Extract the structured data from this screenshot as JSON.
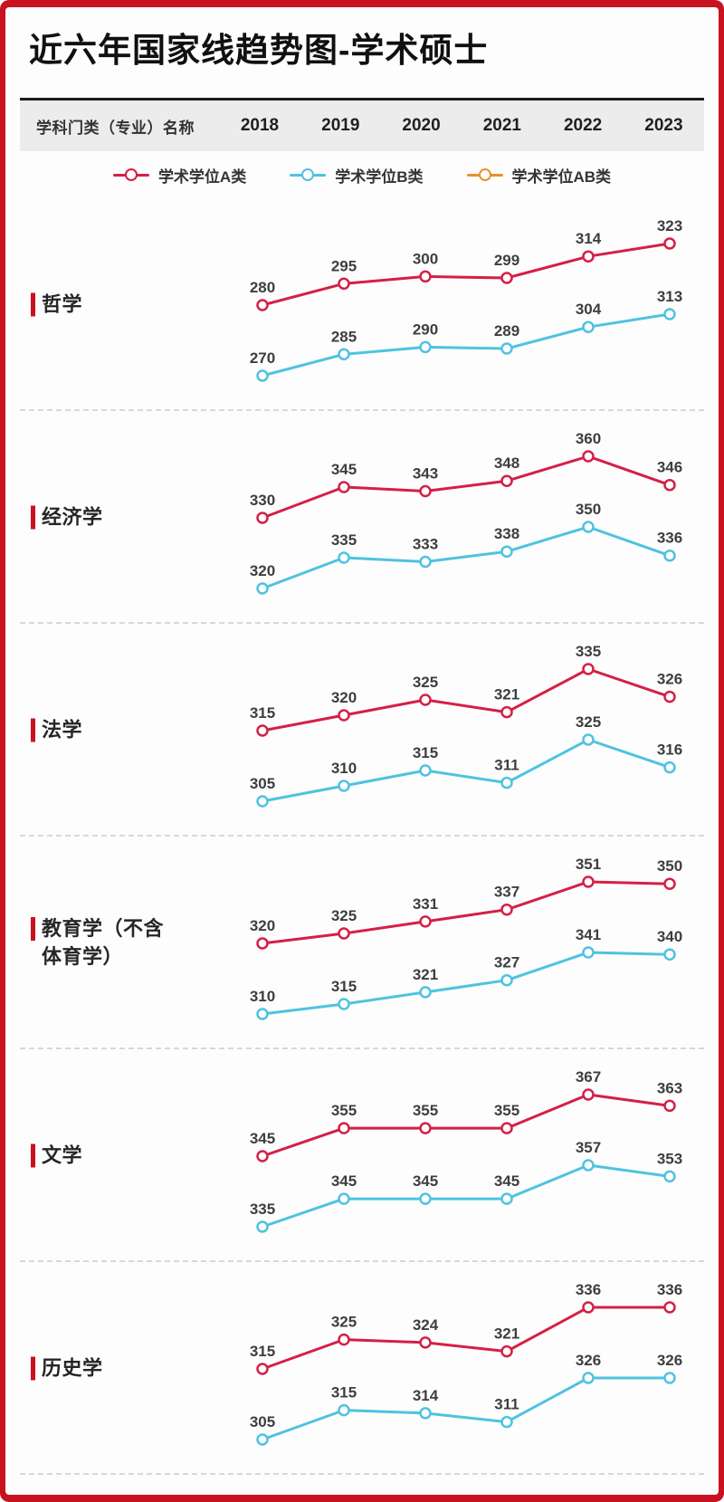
{
  "page": {
    "title": "近六年国家线趋势图-学术硕士"
  },
  "table_header": {
    "name_column": "学科门类（专业）名称",
    "years": [
      "2018",
      "2019",
      "2020",
      "2021",
      "2022",
      "2023"
    ]
  },
  "legend": {
    "items": [
      {
        "label": "学术学位A类",
        "color": "#d42045"
      },
      {
        "label": "学术学位B类",
        "color": "#4ec3e0"
      },
      {
        "label": "学术学位AB类",
        "color": "#e8912d"
      }
    ]
  },
  "colors": {
    "frame_red": "#c8121f",
    "series_a": "#d42045",
    "series_b": "#4ec3e0",
    "series_ab": "#e8912d",
    "header_band_bg": "#ececec",
    "value_label": "#3e3e3e",
    "divider": "#d8d8d8"
  },
  "chart_data": {
    "type": "line",
    "categories": [
      "2018",
      "2019",
      "2020",
      "2021",
      "2022",
      "2023"
    ],
    "legend_position": "top",
    "grid": false,
    "value_labels": true,
    "marker": "open-circle",
    "sections": [
      {
        "subject": "哲学",
        "subject_lines": [
          "哲学"
        ],
        "series": [
          {
            "name": "学术学位A类",
            "color": "#d42045",
            "values": [
              280,
              295,
              300,
              299,
              314,
              323
            ]
          },
          {
            "name": "学术学位B类",
            "color": "#4ec3e0",
            "values": [
              270,
              285,
              290,
              289,
              304,
              313
            ]
          }
        ]
      },
      {
        "subject": "经济学",
        "subject_lines": [
          "经济学"
        ],
        "series": [
          {
            "name": "学术学位A类",
            "color": "#d42045",
            "values": [
              330,
              345,
              343,
              348,
              360,
              346
            ]
          },
          {
            "name": "学术学位B类",
            "color": "#4ec3e0",
            "values": [
              320,
              335,
              333,
              338,
              350,
              336
            ]
          }
        ]
      },
      {
        "subject": "法学",
        "subject_lines": [
          "法学"
        ],
        "series": [
          {
            "name": "学术学位A类",
            "color": "#d42045",
            "values": [
              315,
              320,
              325,
              321,
              335,
              326
            ]
          },
          {
            "name": "学术学位B类",
            "color": "#4ec3e0",
            "values": [
              305,
              310,
              315,
              311,
              325,
              316
            ]
          }
        ]
      },
      {
        "subject": "教育学（不含体育学）",
        "subject_lines": [
          "教育学（不含",
          "体育学）"
        ],
        "series": [
          {
            "name": "学术学位A类",
            "color": "#d42045",
            "values": [
              320,
              325,
              331,
              337,
              351,
              350
            ]
          },
          {
            "name": "学术学位B类",
            "color": "#4ec3e0",
            "values": [
              310,
              315,
              321,
              327,
              341,
              340
            ]
          }
        ]
      },
      {
        "subject": "文学",
        "subject_lines": [
          "文学"
        ],
        "series": [
          {
            "name": "学术学位A类",
            "color": "#d42045",
            "values": [
              345,
              355,
              355,
              355,
              367,
              363
            ]
          },
          {
            "name": "学术学位B类",
            "color": "#4ec3e0",
            "values": [
              335,
              345,
              345,
              345,
              357,
              353
            ]
          }
        ]
      },
      {
        "subject": "历史学",
        "subject_lines": [
          "历史学"
        ],
        "series": [
          {
            "name": "学术学位A类",
            "color": "#d42045",
            "values": [
              315,
              325,
              324,
              321,
              336,
              336
            ]
          },
          {
            "name": "学术学位B类",
            "color": "#4ec3e0",
            "values": [
              305,
              315,
              314,
              311,
              326,
              326
            ]
          }
        ]
      }
    ]
  }
}
